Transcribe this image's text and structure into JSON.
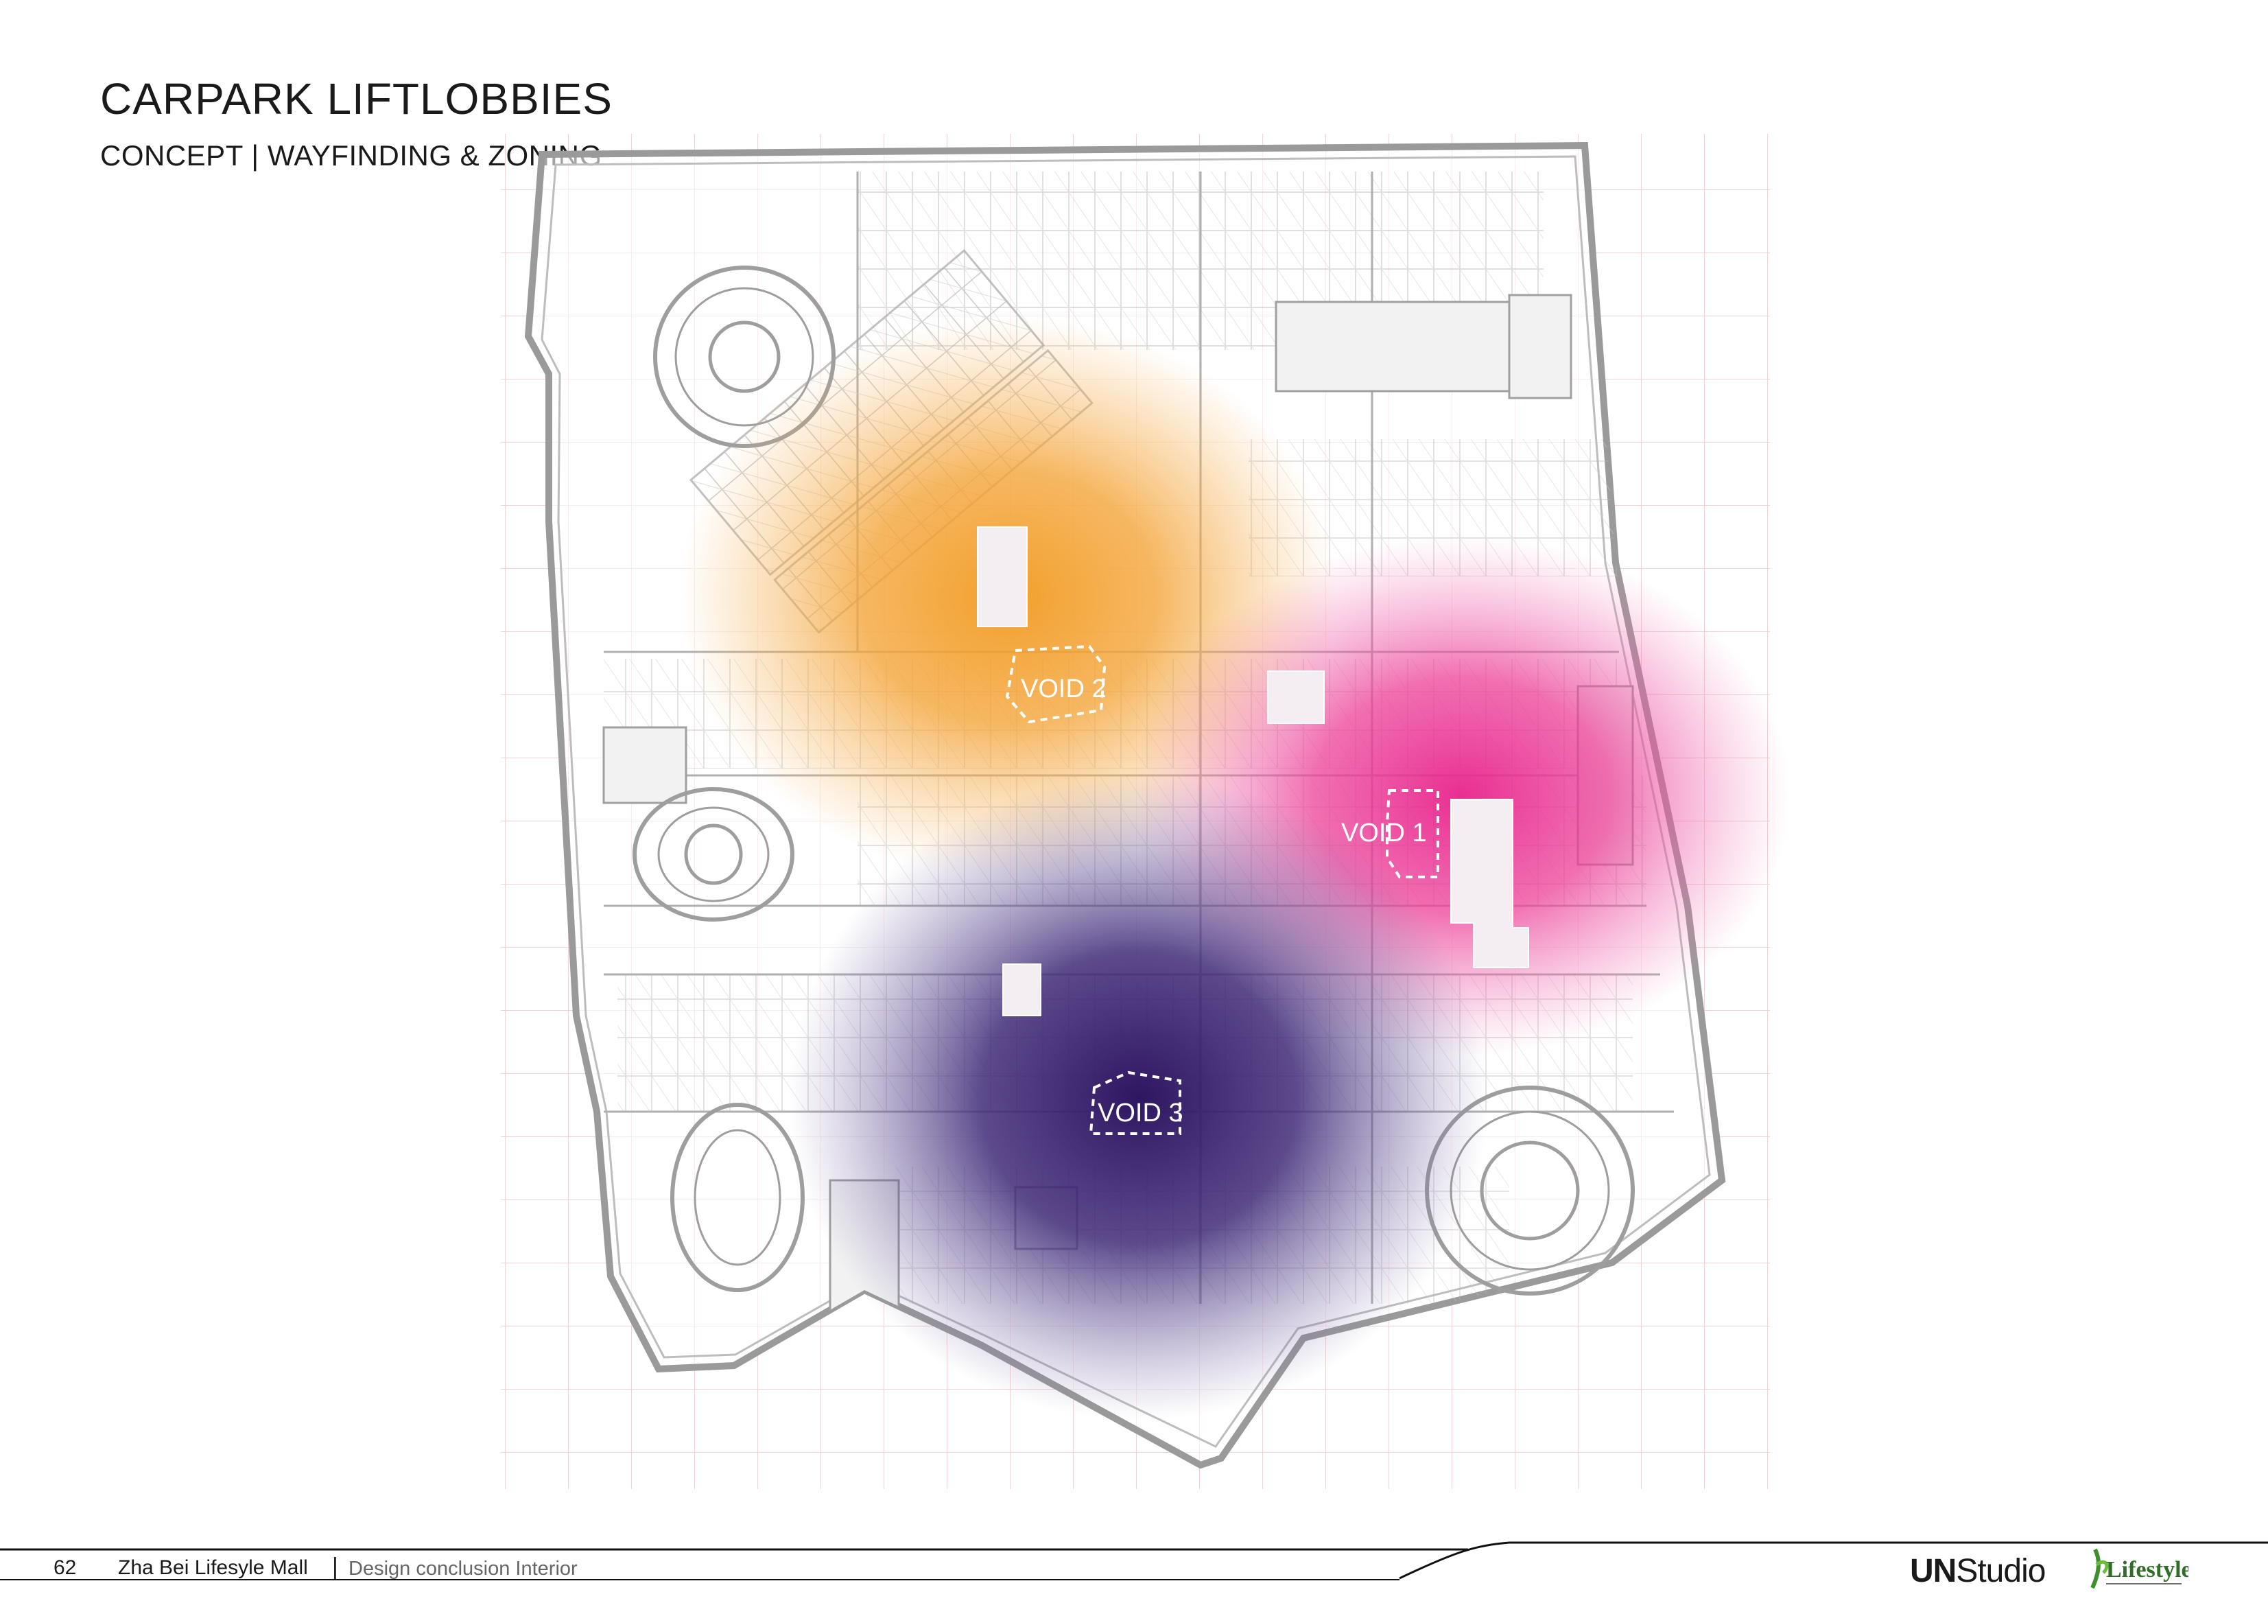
{
  "header": {
    "title": "CARPARK LIFTLOBBIES",
    "subtitle": "CONCEPT | WAYFINDING & ZONING"
  },
  "zones": [
    {
      "label": "VOID 1",
      "color": "#e8248c"
    },
    {
      "label": "VOID 2",
      "color": "#f29a1f"
    },
    {
      "label": "VOID 3",
      "color": "#3a1f6b"
    }
  ],
  "footer": {
    "page_number": "62",
    "project": "Zha Bei Lifesyle Mall",
    "separator": "|",
    "description": "Design conclusion Interior",
    "brand_strong": "UN",
    "brand_rest": "Studio",
    "client_logo": "Lifestyle"
  },
  "colors": {
    "plan_lines": "#9a9a9a",
    "grid_lines": "#e8c8c8",
    "lobby_fill": "#f4eef2"
  }
}
